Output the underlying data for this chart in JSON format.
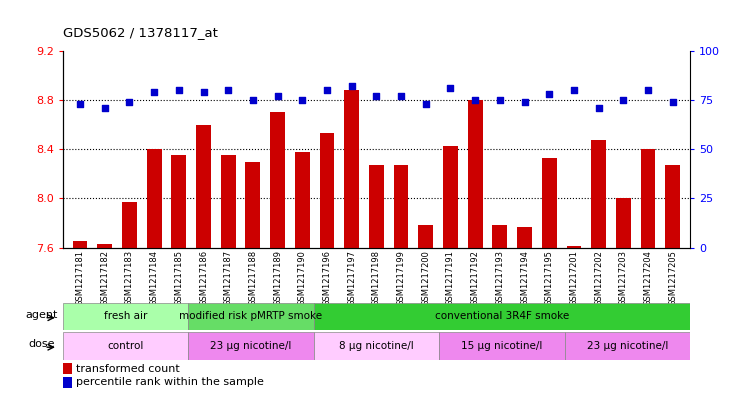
{
  "title": "GDS5062 / 1378117_at",
  "samples": [
    "GSM1217181",
    "GSM1217182",
    "GSM1217183",
    "GSM1217184",
    "GSM1217185",
    "GSM1217186",
    "GSM1217187",
    "GSM1217188",
    "GSM1217189",
    "GSM1217190",
    "GSM1217196",
    "GSM1217197",
    "GSM1217198",
    "GSM1217199",
    "GSM1217200",
    "GSM1217191",
    "GSM1217192",
    "GSM1217193",
    "GSM1217194",
    "GSM1217195",
    "GSM1217201",
    "GSM1217202",
    "GSM1217203",
    "GSM1217204",
    "GSM1217205"
  ],
  "bar_values": [
    7.65,
    7.63,
    7.97,
    8.4,
    8.35,
    8.6,
    8.35,
    8.3,
    8.7,
    8.38,
    8.53,
    8.88,
    8.27,
    8.27,
    7.78,
    8.43,
    8.8,
    7.78,
    7.77,
    8.33,
    7.61,
    8.48,
    8.0,
    8.4,
    8.27
  ],
  "percentile_values": [
    73,
    71,
    74,
    79,
    80,
    79,
    80,
    75,
    77,
    75,
    80,
    82,
    77,
    77,
    73,
    81,
    75,
    75,
    74,
    78,
    80,
    71,
    75,
    80,
    74
  ],
  "bar_color": "#cc0000",
  "percentile_color": "#0000cc",
  "ylim_left": [
    7.6,
    9.2
  ],
  "ylim_right": [
    0,
    100
  ],
  "yticks_left": [
    7.6,
    8.0,
    8.4,
    8.8,
    9.2
  ],
  "yticks_right": [
    0,
    25,
    50,
    75,
    100
  ],
  "grid_lines": [
    8.0,
    8.4,
    8.8
  ],
  "agent_groups": [
    {
      "label": "fresh air",
      "start": 0,
      "end": 5,
      "color": "#aaffaa"
    },
    {
      "label": "modified risk pMRTP smoke",
      "start": 5,
      "end": 10,
      "color": "#66dd66"
    },
    {
      "label": "conventional 3R4F smoke",
      "start": 10,
      "end": 25,
      "color": "#33cc33"
    }
  ],
  "dose_groups": [
    {
      "label": "control",
      "start": 0,
      "end": 5,
      "color": "#ffccff"
    },
    {
      "label": "23 μg nicotine/l",
      "start": 5,
      "end": 10,
      "color": "#ee88ee"
    },
    {
      "label": "8 μg nicotine/l",
      "start": 10,
      "end": 15,
      "color": "#ffccff"
    },
    {
      "label": "15 μg nicotine/l",
      "start": 15,
      "end": 20,
      "color": "#ee88ee"
    },
    {
      "label": "23 μg nicotine/l",
      "start": 20,
      "end": 25,
      "color": "#ee88ee"
    }
  ],
  "legend_bar_label": "transformed count",
  "legend_pct_label": "percentile rank within the sample",
  "agent_label": "agent",
  "dose_label": "dose",
  "background_color": "#ffffff",
  "plot_bg_color": "#ffffff",
  "xtick_bg_color": "#dddddd"
}
